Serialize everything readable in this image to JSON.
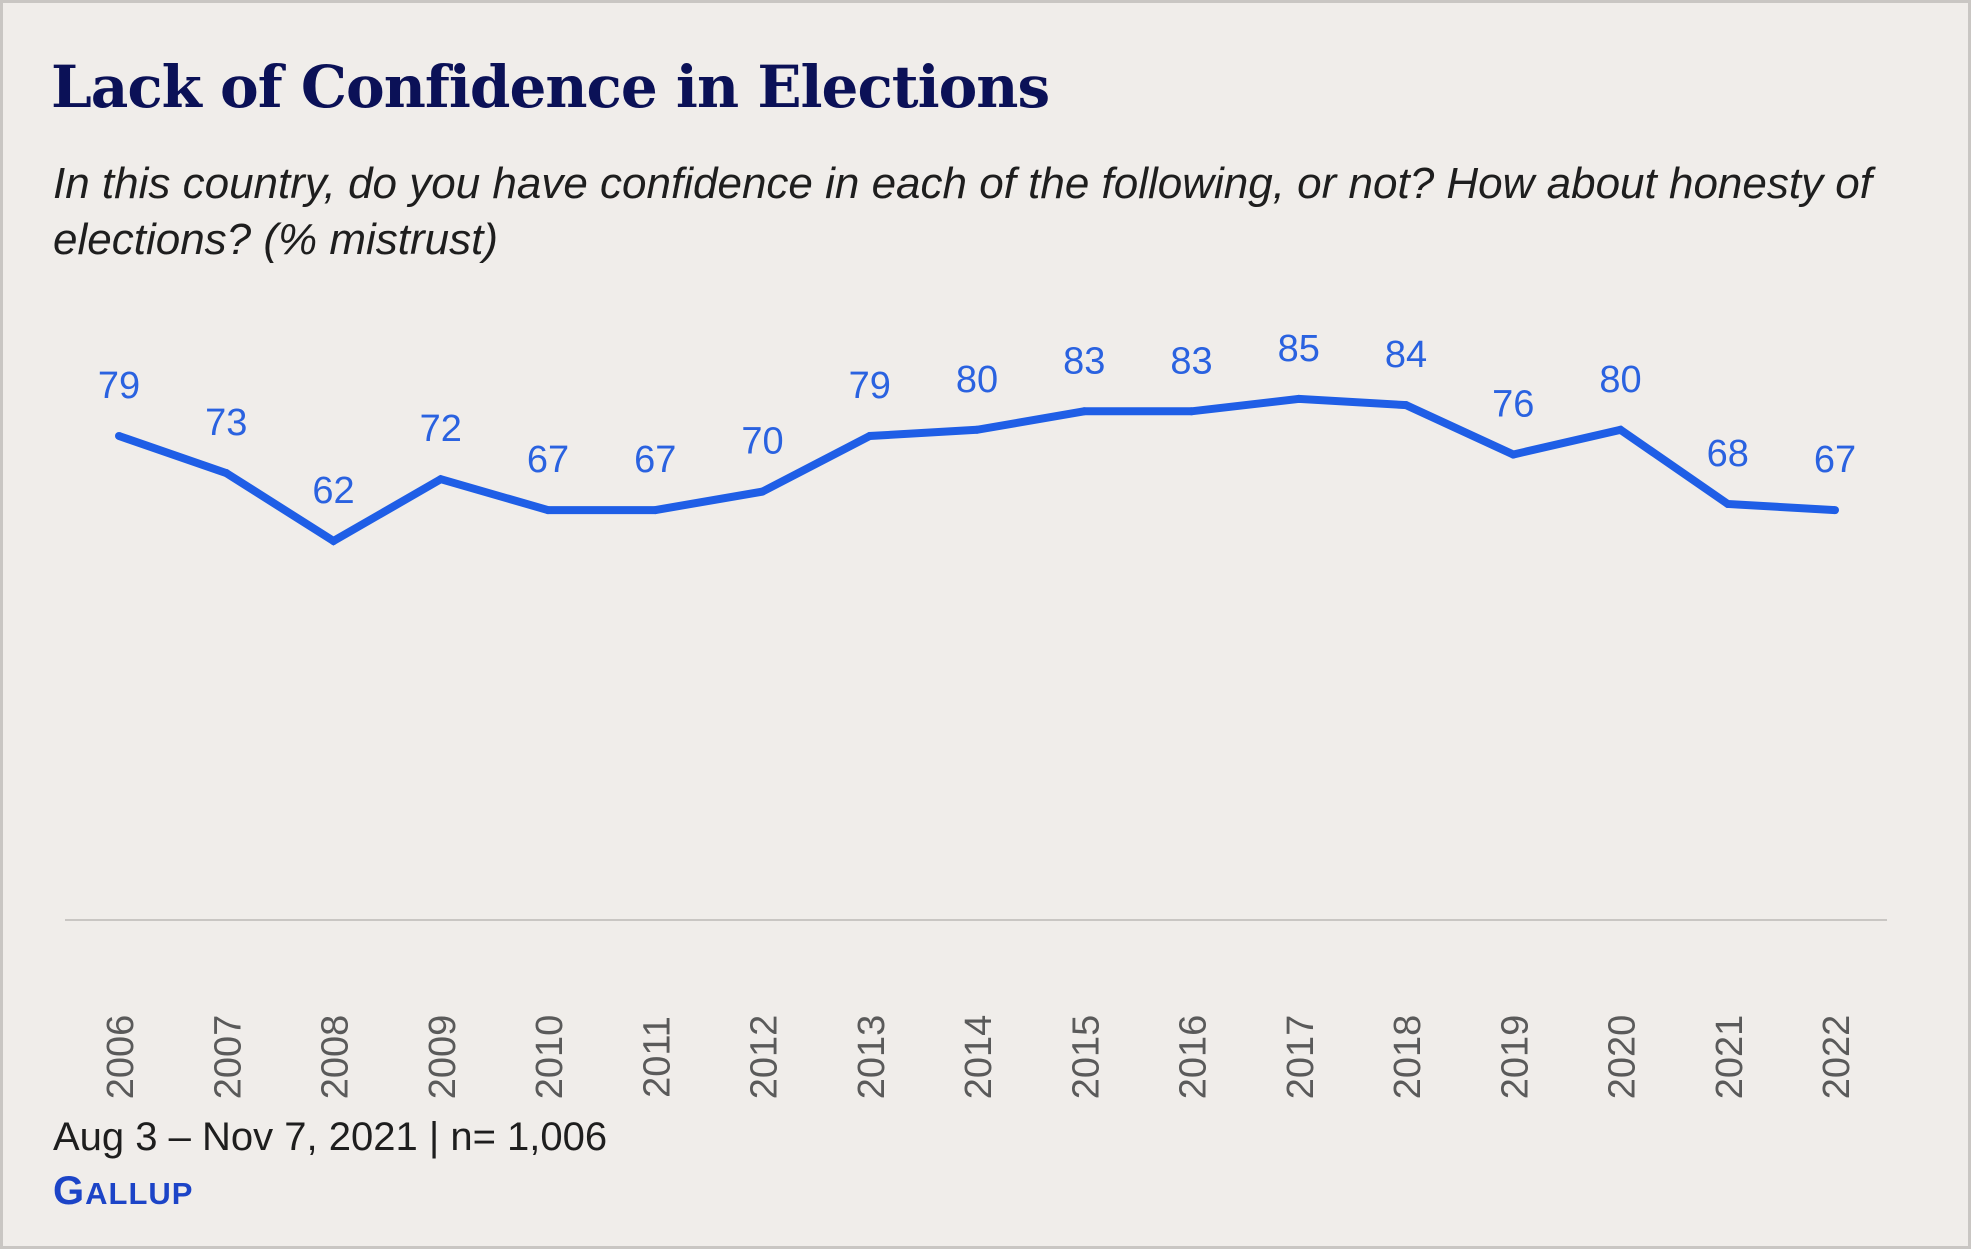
{
  "colors": {
    "background": "#f0edea",
    "title": "#0b1157",
    "line": "#1f5ee6",
    "label": "#2a62e0",
    "axis": "#c9c6c3",
    "tick": "#5a5a5a",
    "brand": "#1c44c7"
  },
  "chart_data": {
    "type": "line",
    "title": "Lack of Confidence in Elections",
    "subtitle": "In this country, do you have confidence in each of the following, or not? How about honesty of elections? (% mistrust)",
    "xlabel": "",
    "ylabel": "",
    "categories": [
      "2006",
      "2007",
      "2008",
      "2009",
      "2010",
      "2011",
      "2012",
      "2013",
      "2014",
      "2015",
      "2016",
      "2017",
      "2018",
      "2019",
      "2020",
      "2021",
      "2022"
    ],
    "values": [
      79,
      73,
      62,
      72,
      67,
      67,
      70,
      79,
      80,
      83,
      83,
      85,
      84,
      76,
      80,
      68,
      67
    ],
    "ylim": [
      0,
      100
    ],
    "grid": false,
    "legend": "none",
    "data_labels": true
  },
  "footer": {
    "note": "Aug 3 – Nov 7, 2021 | n= 1,006",
    "brand": "Gallup"
  }
}
